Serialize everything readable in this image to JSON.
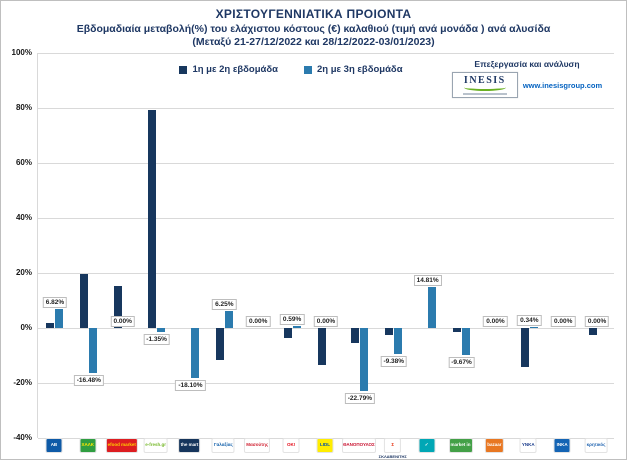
{
  "header": {
    "title": "ΧΡΙΣΤΟΥΓΕΝΝΙΑΤΙΚΑ ΠΡΟΙΟΝΤΑ",
    "subtitle1": "Εβδομαδιαία μεταβολή(%) του ελάχιστου κόστους (€) καλαθιού (τιμή ανά μονάδα ) ανά αλυσίδα",
    "subtitle2": "(Μεταξύ 21-27/12/2022 και 28/12/2022-03/01/2023)"
  },
  "branding": {
    "caption": "Επεξεργασία και ανάλυση",
    "logo_text": "INESIS",
    "website": "www.inesisgroup.com"
  },
  "chart_data": {
    "type": "bar",
    "title": "ΧΡΙΣΤΟΥΓΕΝΝΙΑΤΙΚΑ ΠΡΟΙΟΝΤΑ",
    "subtitle": "Εβδομαδιαία μεταβολή(%) του ελάχιστου κόστους (€) καλαθιού (τιμή ανά μονάδα ) ανά αλυσίδα (Μεταξύ 21-27/12/2022 και 28/12/2022-03/01/2023)",
    "ylim": [
      -40,
      100
    ],
    "ytick_step": 20,
    "ytick_labels": [
      "100%",
      "80%",
      "60%",
      "40%",
      "20%",
      "0%",
      "-20%",
      "-40%"
    ],
    "grid": true,
    "legend_position": "top-center",
    "categories": [
      "ΑΒ Βασιλόπουλος",
      "Χαλκιαδάκης",
      "efood market",
      "e-Fresh.gr",
      "The Mart",
      "Γαλαξίας",
      "Μασούτης",
      "ΟΚ! Markets",
      "Lidl",
      "Θανόπουλος",
      "Σκλαβενίτης",
      "My Market",
      "Market In",
      "Bazaar",
      "ΣΥΝ.ΚΑ",
      "ΙΝΚΑ",
      "Κρητικός"
    ],
    "series": [
      {
        "name": "1η με 2η εβδομάδα",
        "color": "#17375e",
        "values": [
          2.0,
          19.7,
          15.2,
          79.3,
          0,
          -11.5,
          0,
          -3.5,
          -13.5,
          -5.5,
          -2.5,
          0,
          -1.5,
          0,
          -14.2,
          0,
          -2.5
        ]
      },
      {
        "name": "2η με 3η εβδομάδα",
        "color": "#2b7bae",
        "values": [
          6.82,
          -16.48,
          0,
          -1.35,
          -18.1,
          6.25,
          0,
          0.59,
          0,
          -22.79,
          -9.38,
          14.81,
          -9.67,
          0,
          0.34,
          0,
          0
        ]
      }
    ],
    "data_labels": {
      "series": "2η με 3η εβδομάδα",
      "values": [
        "6.82%",
        "-16.48%",
        "0.00%",
        "-1.35%",
        "-18.10%",
        "6.25%",
        "0.00%",
        "0.59%",
        "0.00%",
        "-22.79%",
        "-9.38%",
        "14.81%",
        "-9.67%",
        "0.00%",
        "0.34%",
        "0.00%",
        "0.00%"
      ]
    }
  },
  "chains": [
    {
      "name": "ΑΒ Βασιλόπουλος",
      "text": "AB",
      "bg": "#0e5aa7",
      "fg": "#ffffff"
    },
    {
      "name": "Χαλκιαδάκης",
      "text": "ΧΑΛΚ",
      "bg": "#2f9e41",
      "fg": "#ffe800"
    },
    {
      "name": "efood market",
      "text": "efood market",
      "bg": "#dd1d21",
      "fg": "#ffd200"
    },
    {
      "name": "e-Fresh.gr",
      "text": "e-fresh.gr",
      "bg": "#ffffff",
      "fg": "#76b82a"
    },
    {
      "name": "The Mart",
      "text": "the mart",
      "bg": "#16355c",
      "fg": "#ffffff"
    },
    {
      "name": "Γαλαξίας",
      "text": "Γαλαξίας",
      "bg": "#ffffff",
      "fg": "#1663ac"
    },
    {
      "name": "Μασούτης",
      "text": "Μασούτης",
      "bg": "#ffffff",
      "fg": "#d02030"
    },
    {
      "name": "ΟΚ! Markets",
      "text": "ΟΚ!",
      "bg": "#ffffff",
      "fg": "#e30613"
    },
    {
      "name": "Lidl",
      "text": "LIDL",
      "bg": "#ffed00",
      "fg": "#0050aa"
    },
    {
      "name": "Θανόπουλος",
      "text": "ΘΑΝΟΠΟΥΛΟΣ",
      "bg": "#ffffff",
      "fg": "#c8102e"
    },
    {
      "name": "Σκλαβενίτης",
      "text": "Σ",
      "bg": "#ffffff",
      "fg": "#e63312",
      "sub": "ΣΚΛΑΒΕΝΙΤΗΣ"
    },
    {
      "name": "My Market",
      "text": "✓",
      "bg": "#00a7b5",
      "fg": "#ffffff"
    },
    {
      "name": "Market In",
      "text": "market in",
      "bg": "#43a047",
      "fg": "#ffffff"
    },
    {
      "name": "Bazaar",
      "text": "bazaar",
      "bg": "#e87722",
      "fg": "#ffffff"
    },
    {
      "name": "ΣΥΝ.ΚΑ",
      "text": "ΥΝΚΑ",
      "bg": "#ffffff",
      "fg": "#1a3c8c"
    },
    {
      "name": "ΙΝΚΑ",
      "text": "ΙΝΚΑ",
      "bg": "#1464b4",
      "fg": "#ffffff"
    },
    {
      "name": "Κρητικός",
      "text": "κρητικός",
      "bg": "#ffffff",
      "fg": "#1f63b0"
    }
  ]
}
